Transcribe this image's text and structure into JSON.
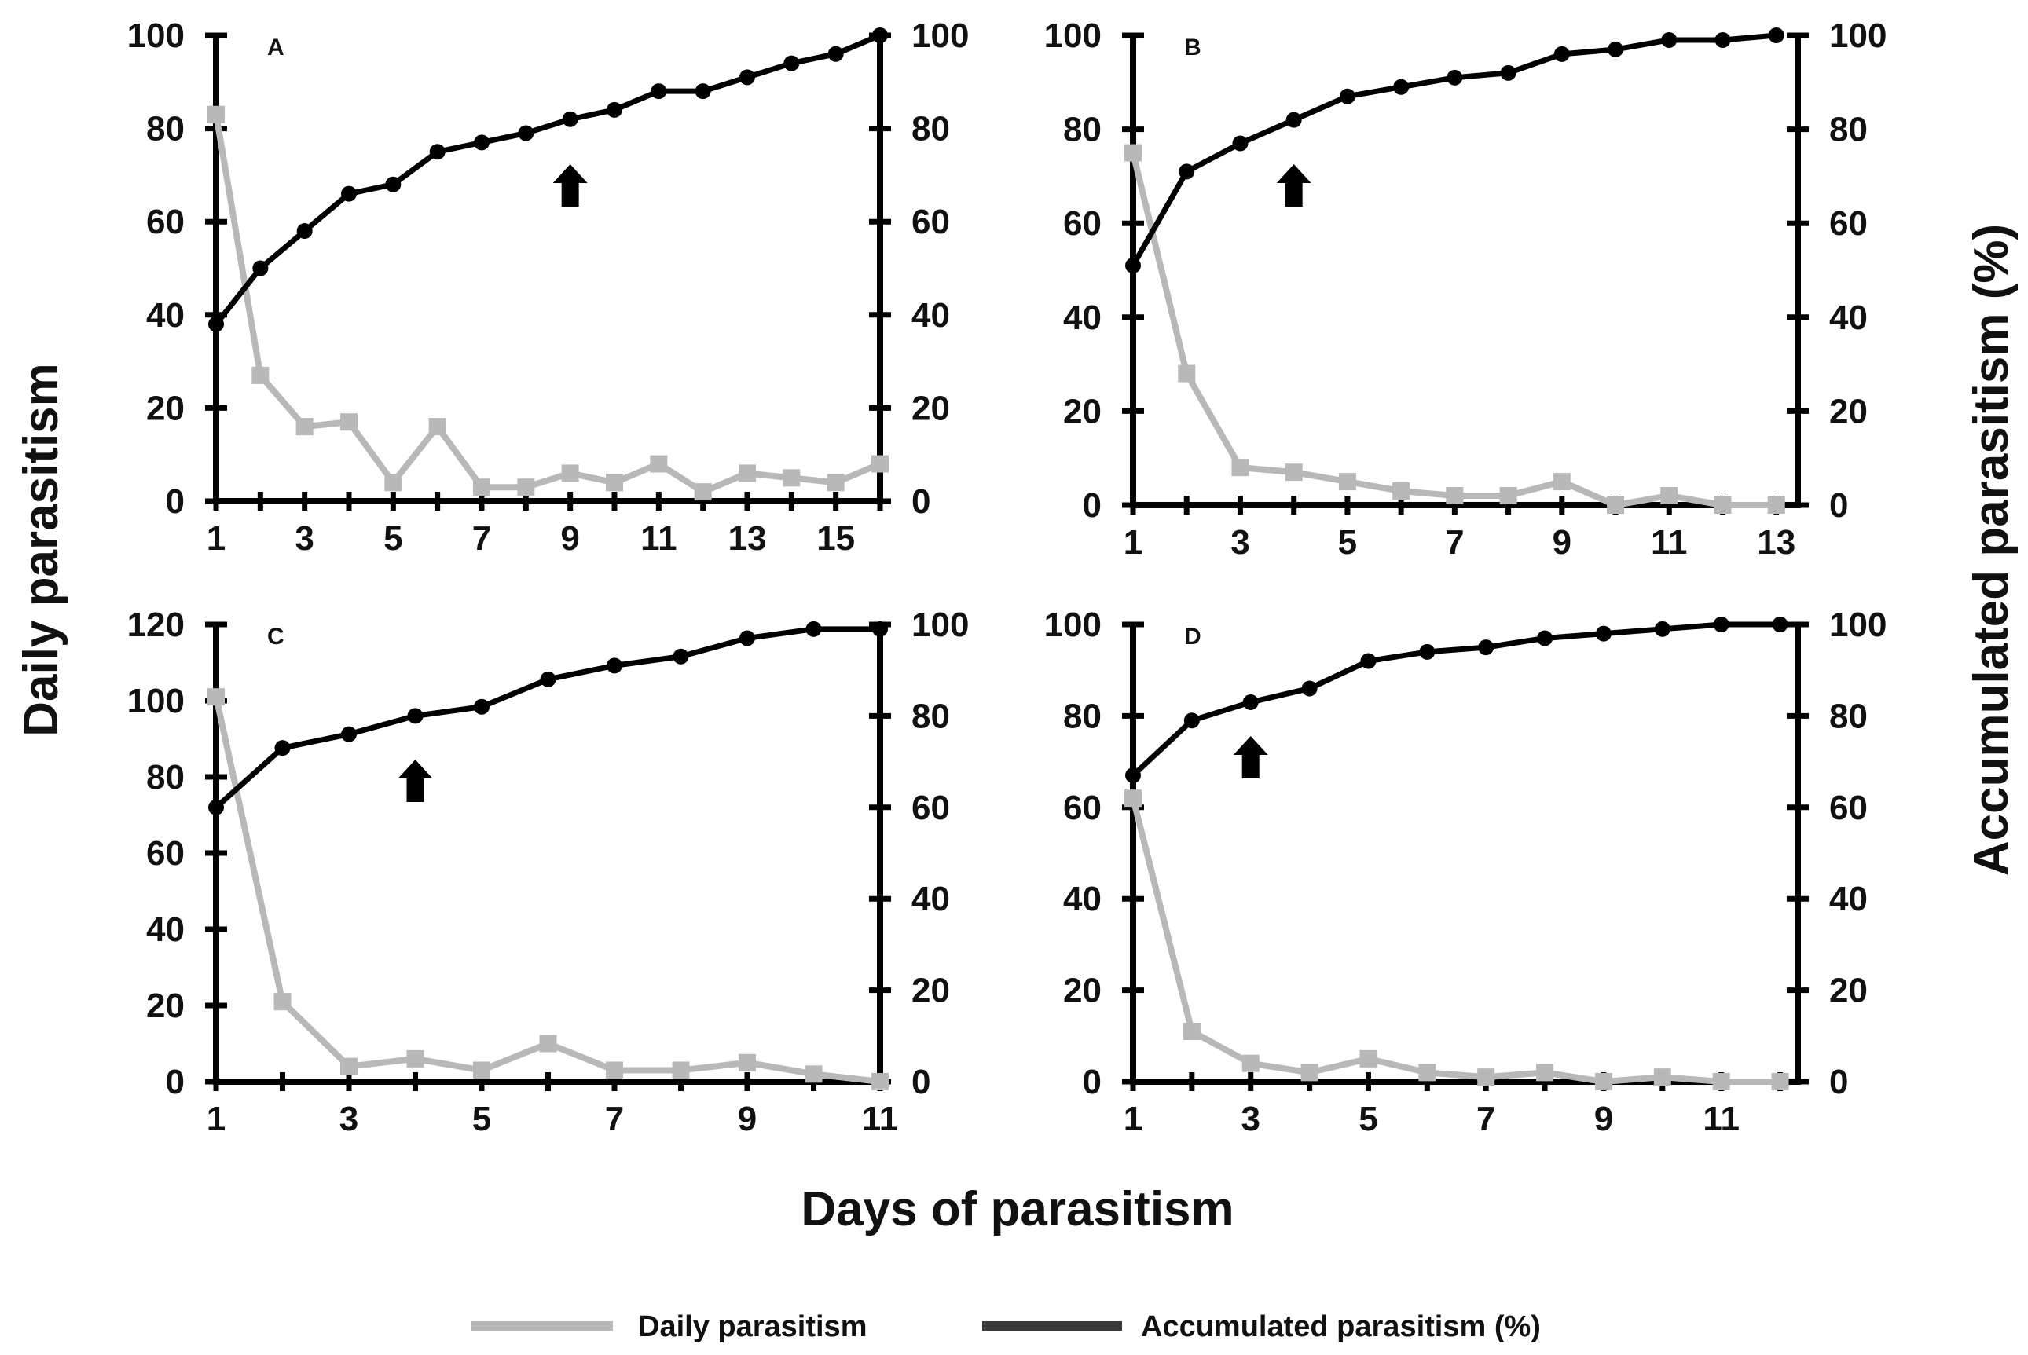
{
  "figure": {
    "ylabel_left": "Daily parasitism",
    "ylabel_right": "Accumulated parasitism (%)",
    "xlabel": "Days of parasitism",
    "legend": [
      {
        "label": "Daily parasitism",
        "color": "#b8b8b8"
      },
      {
        "label": "Accumulated parasitism (%)",
        "color": "#3a3a3a"
      }
    ],
    "colors": {
      "daily": "#b8b8b8",
      "accumulated": "#000000",
      "axis": "#000000"
    }
  },
  "chart_data": [
    {
      "type": "line",
      "panel": "A",
      "x": [
        1,
        2,
        3,
        4,
        5,
        6,
        7,
        8,
        9,
        10,
        11,
        12,
        13,
        14,
        15,
        16
      ],
      "x_ticks": [
        1,
        3,
        5,
        7,
        9,
        11,
        13,
        15
      ],
      "xlim": [
        1,
        16
      ],
      "ylim_left": [
        0,
        100
      ],
      "y_ticks_left": [
        0,
        20,
        40,
        60,
        80,
        100
      ],
      "ylim_right": [
        0,
        100
      ],
      "y_ticks_right": [
        0,
        20,
        40,
        60,
        80,
        100
      ],
      "series": [
        {
          "name": "Daily parasitism",
          "axis": "left",
          "values": [
            83,
            27,
            16,
            17,
            4,
            16,
            3,
            3,
            6,
            4,
            8,
            2,
            6,
            5,
            4,
            8
          ]
        },
        {
          "name": "Accumulated parasitism (%)",
          "axis": "right",
          "values": [
            38,
            50,
            58,
            66,
            68,
            75,
            77,
            79,
            82,
            84,
            88,
            88,
            91,
            94,
            96,
            100
          ]
        }
      ],
      "arrow_x": 9
    },
    {
      "type": "line",
      "panel": "B",
      "x": [
        1,
        2,
        3,
        4,
        5,
        6,
        7,
        8,
        9,
        10,
        11,
        12,
        13
      ],
      "x_ticks": [
        1,
        3,
        5,
        7,
        9,
        11,
        13
      ],
      "xlim": [
        1,
        13.4
      ],
      "ylim_left": [
        0,
        100
      ],
      "y_ticks_left": [
        0,
        20,
        40,
        60,
        80,
        100
      ],
      "ylim_right": [
        0,
        100
      ],
      "y_ticks_right": [
        0,
        20,
        40,
        60,
        80,
        100
      ],
      "series": [
        {
          "name": "Daily parasitism",
          "axis": "left",
          "values": [
            75,
            28,
            8,
            7,
            5,
            3,
            2,
            2,
            5,
            0,
            2,
            0,
            0
          ]
        },
        {
          "name": "Accumulated parasitism (%)",
          "axis": "right",
          "values": [
            51,
            71,
            77,
            82,
            87,
            89,
            91,
            92,
            96,
            97,
            99,
            99,
            100
          ]
        }
      ],
      "arrow_x": 4
    },
    {
      "type": "line",
      "panel": "C",
      "x": [
        1,
        2,
        3,
        4,
        5,
        6,
        7,
        8,
        9,
        10,
        11
      ],
      "x_ticks": [
        1,
        3,
        5,
        7,
        9,
        11
      ],
      "xlim": [
        1,
        11
      ],
      "ylim_left": [
        0,
        120
      ],
      "y_ticks_left": [
        0,
        20,
        40,
        60,
        80,
        100,
        120
      ],
      "ylim_right": [
        0,
        100
      ],
      "y_ticks_right": [
        0,
        20,
        40,
        60,
        80,
        100
      ],
      "series": [
        {
          "name": "Daily parasitism",
          "axis": "left",
          "values": [
            101,
            21,
            4,
            6,
            3,
            10,
            3,
            3,
            5,
            2,
            0
          ]
        },
        {
          "name": "Accumulated parasitism (%)",
          "axis": "right",
          "values": [
            60,
            73,
            76,
            80,
            82,
            88,
            91,
            93,
            97,
            99,
            99
          ]
        }
      ],
      "arrow_x": 4
    },
    {
      "type": "line",
      "panel": "D",
      "x": [
        1,
        2,
        3,
        4,
        5,
        6,
        7,
        8,
        9,
        10,
        11,
        12
      ],
      "x_ticks": [
        1,
        3,
        5,
        7,
        9,
        11
      ],
      "xlim": [
        1,
        12.3
      ],
      "ylim_left": [
        0,
        100
      ],
      "y_ticks_left": [
        0,
        20,
        40,
        60,
        80,
        100
      ],
      "ylim_right": [
        0,
        100
      ],
      "y_ticks_right": [
        0,
        20,
        40,
        60,
        80,
        100
      ],
      "series": [
        {
          "name": "Daily parasitism",
          "axis": "left",
          "values": [
            62,
            11,
            4,
            2,
            5,
            2,
            1,
            2,
            0,
            1,
            0,
            0
          ]
        },
        {
          "name": "Accumulated parasitism (%)",
          "axis": "right",
          "values": [
            67,
            79,
            83,
            86,
            92,
            94,
            95,
            97,
            98,
            99,
            100,
            100
          ]
        }
      ],
      "arrow_x": 3
    }
  ]
}
